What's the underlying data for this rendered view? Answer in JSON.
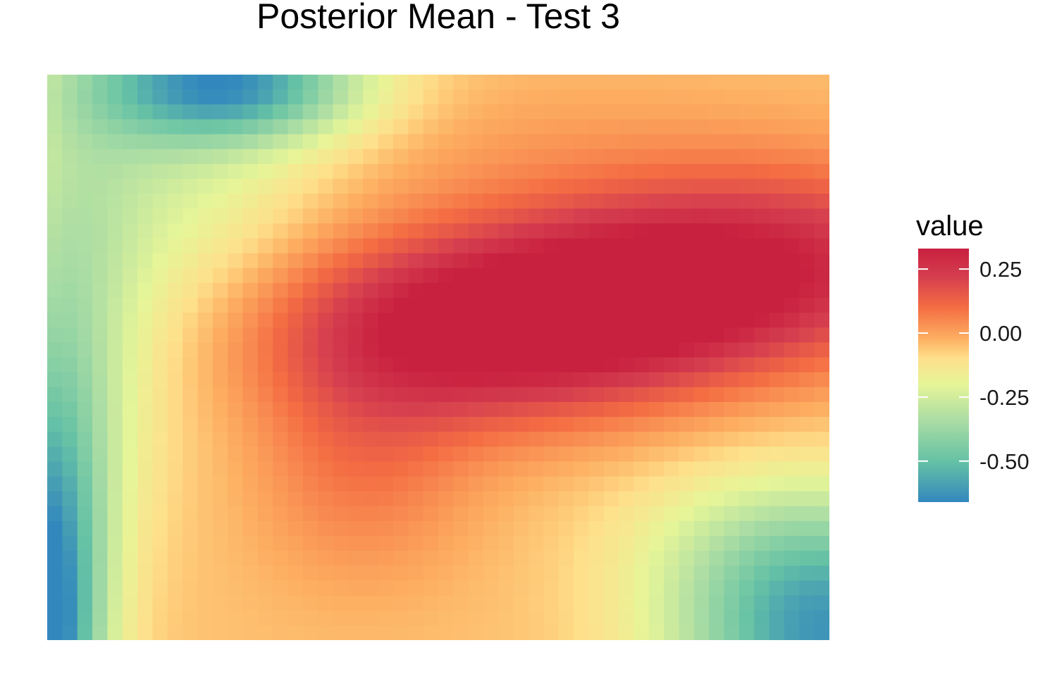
{
  "chart_data": {
    "type": "heatmap",
    "title": "Posterior Mean - Test 3",
    "xlabel": "",
    "ylabel": "",
    "grid": false,
    "axes_visible": false,
    "grid_cols": 52,
    "grid_rows": 38,
    "value_range": [
      -0.66,
      0.33
    ],
    "colorscale": {
      "name": "Spectral (reversed)",
      "stops": [
        {
          "value": -0.66,
          "color": "#3288bd"
        },
        {
          "value": -0.5,
          "color": "#66c2a5"
        },
        {
          "value": -0.34,
          "color": "#abdda4"
        },
        {
          "value": -0.2,
          "color": "#e6f598"
        },
        {
          "value": -0.1,
          "color": "#fee08b"
        },
        {
          "value": -0.02,
          "color": "#fdae61"
        },
        {
          "value": 0.1,
          "color": "#f46d43"
        },
        {
          "value": 0.22,
          "color": "#d53e4f"
        },
        {
          "value": 0.33,
          "color": "#c8203f"
        }
      ]
    },
    "field_components": [
      {
        "kind": "constant",
        "value": -0.05
      },
      {
        "kind": "bump",
        "cx": 0.515,
        "cy": 0.455,
        "sx": 0.19,
        "sy": 0.12,
        "amp": 0.36
      },
      {
        "kind": "bump",
        "cx": 0.93,
        "cy": 0.33,
        "sx": 0.19,
        "sy": 0.12,
        "amp": 0.3
      },
      {
        "kind": "bump",
        "cx": 0.73,
        "cy": 0.4,
        "sx": 0.16,
        "sy": 0.11,
        "amp": 0.25
      },
      {
        "kind": "bump",
        "cx": 0.4,
        "cy": 0.7,
        "sx": 0.1,
        "sy": 0.14,
        "amp": 0.12
      },
      {
        "kind": "bump",
        "cx": 0.6,
        "cy": 0.12,
        "sx": 0.22,
        "sy": 0.09,
        "amp": 0.04
      },
      {
        "kind": "bump",
        "cx": 0.24,
        "cy": 0.02,
        "sx": 0.12,
        "sy": 0.07,
        "amp": -0.45
      },
      {
        "kind": "bump",
        "cx": 0.0,
        "cy": 1.0,
        "sx": 0.05,
        "sy": 0.29,
        "amp": -0.62
      },
      {
        "kind": "bump",
        "cx": 0.03,
        "cy": 0.5,
        "sx": 0.07,
        "sy": 0.32,
        "amp": -0.2
      },
      {
        "kind": "bump",
        "cx": 0.15,
        "cy": 0.05,
        "sx": 0.14,
        "sy": 0.32,
        "amp": -0.2
      },
      {
        "kind": "bump",
        "cx": 1.0,
        "cy": 1.0,
        "sx": 0.14,
        "sy": 0.15,
        "amp": -0.55
      },
      {
        "kind": "bump",
        "cx": 0.93,
        "cy": 0.82,
        "sx": 0.14,
        "sy": 0.1,
        "amp": -0.12
      }
    ],
    "legend": {
      "title": "value",
      "position": "right",
      "ticks": [
        {
          "value": 0.25,
          "label": "0.25"
        },
        {
          "value": 0.0,
          "label": "0.00"
        },
        {
          "value": -0.25,
          "label": "-0.25"
        },
        {
          "value": -0.5,
          "label": "-0.50"
        }
      ]
    }
  }
}
